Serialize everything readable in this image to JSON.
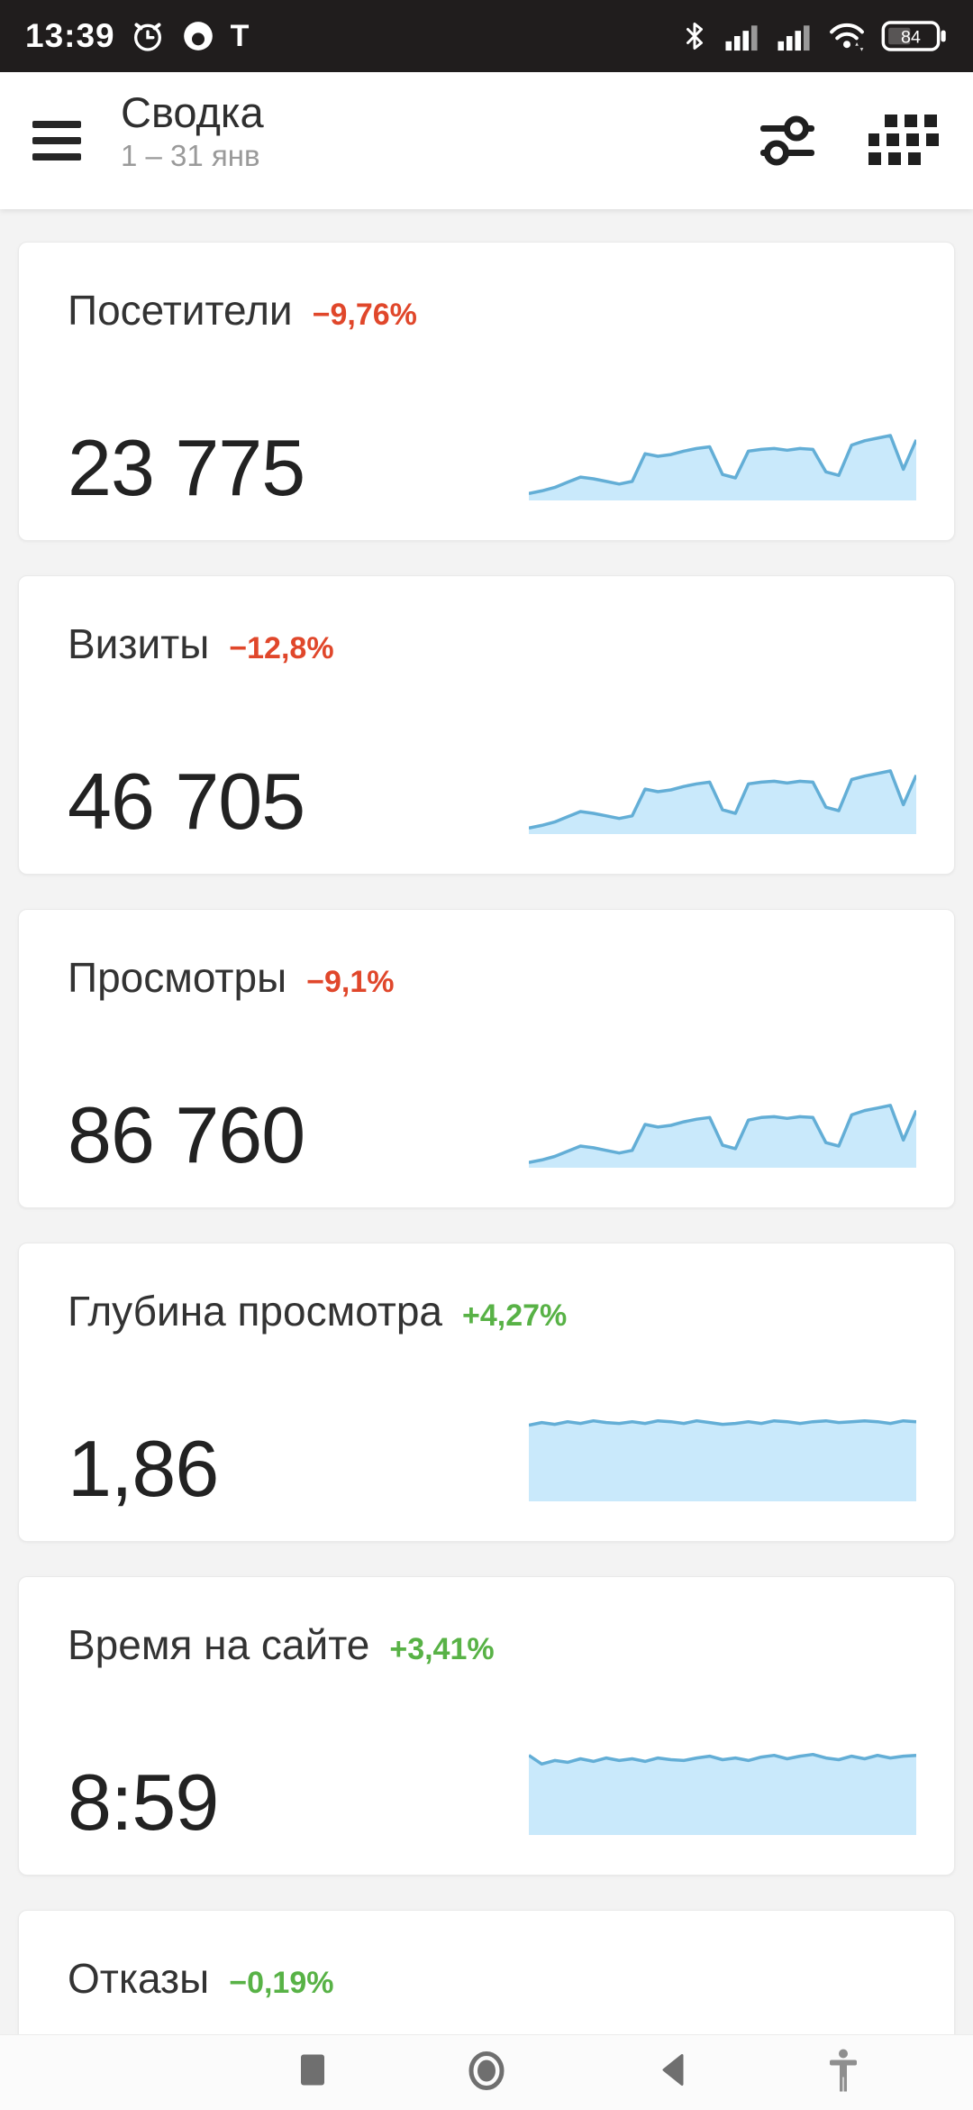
{
  "status_bar": {
    "time": "13:39",
    "battery_percent": "84",
    "left_icons": [
      "alarm-icon",
      "circle-notification-icon",
      "t-notification-icon"
    ],
    "right_icons": [
      "bluetooth-icon",
      "cell-signal-icon",
      "cell-signal-icon",
      "wifi-icon",
      "battery-icon"
    ]
  },
  "header": {
    "title": "Сводка",
    "subtitle": "1 – 31 янв"
  },
  "cards": [
    {
      "title": "Посетители",
      "delta": "−9,76%",
      "direction": "down",
      "delta_color": "#e0472b",
      "value": "23 775",
      "spark": [
        8,
        11,
        15,
        21,
        27,
        25,
        22,
        19,
        22,
        54,
        51,
        53,
        57,
        60,
        62,
        30,
        26,
        57,
        59,
        60,
        58,
        60,
        59,
        33,
        29,
        64,
        69,
        72,
        75,
        36,
        70
      ]
    },
    {
      "title": "Визиты",
      "delta": "−12,8%",
      "direction": "down",
      "delta_color": "#e0472b",
      "value": "46 705",
      "spark": [
        7,
        10,
        14,
        20,
        26,
        24,
        21,
        18,
        21,
        52,
        49,
        51,
        55,
        58,
        60,
        28,
        24,
        58,
        60,
        61,
        59,
        61,
        60,
        31,
        27,
        63,
        67,
        70,
        73,
        34,
        68
      ]
    },
    {
      "title": "Просмотры",
      "delta": "−9,1%",
      "direction": "down",
      "delta_color": "#e0472b",
      "value": "86 760",
      "spark": [
        6,
        9,
        13,
        19,
        25,
        23,
        20,
        17,
        20,
        50,
        47,
        49,
        53,
        56,
        58,
        26,
        22,
        55,
        58,
        59,
        57,
        59,
        58,
        29,
        25,
        61,
        66,
        69,
        72,
        32,
        66
      ]
    },
    {
      "title": "Глубина просмотра",
      "delta": "+4,27%",
      "direction": "up",
      "delta_color": "#58b246",
      "value": "1,86",
      "spark": [
        88,
        91,
        89,
        92,
        90,
        93,
        91,
        90,
        92,
        90,
        93,
        92,
        90,
        93,
        91,
        89,
        90,
        92,
        90,
        93,
        92,
        90,
        92,
        93,
        91,
        92,
        93,
        92,
        90,
        93,
        92
      ]
    },
    {
      "title": "Время на сайте",
      "delta": "+3,41%",
      "direction": "up",
      "delta_color": "#58b246",
      "value": "8:59",
      "spark": [
        92,
        82,
        86,
        84,
        88,
        85,
        89,
        86,
        88,
        85,
        89,
        87,
        86,
        89,
        91,
        87,
        89,
        86,
        90,
        92,
        88,
        91,
        93,
        89,
        87,
        91,
        88,
        92,
        89,
        91,
        92
      ]
    },
    {
      "title": "Отказы",
      "delta": "−0,19%",
      "direction": "up",
      "delta_color": "#58b246"
    }
  ],
  "nav_bar": {
    "icons": [
      "recents-icon",
      "home-icon",
      "back-icon",
      "accessibility-icon"
    ]
  },
  "colors": {
    "spark_fill": "#c9e9fb",
    "spark_stroke": "#63aed6",
    "delta_negative": "#e0472b",
    "delta_positive": "#58b246",
    "status_bar_bg": "#201d1d"
  }
}
